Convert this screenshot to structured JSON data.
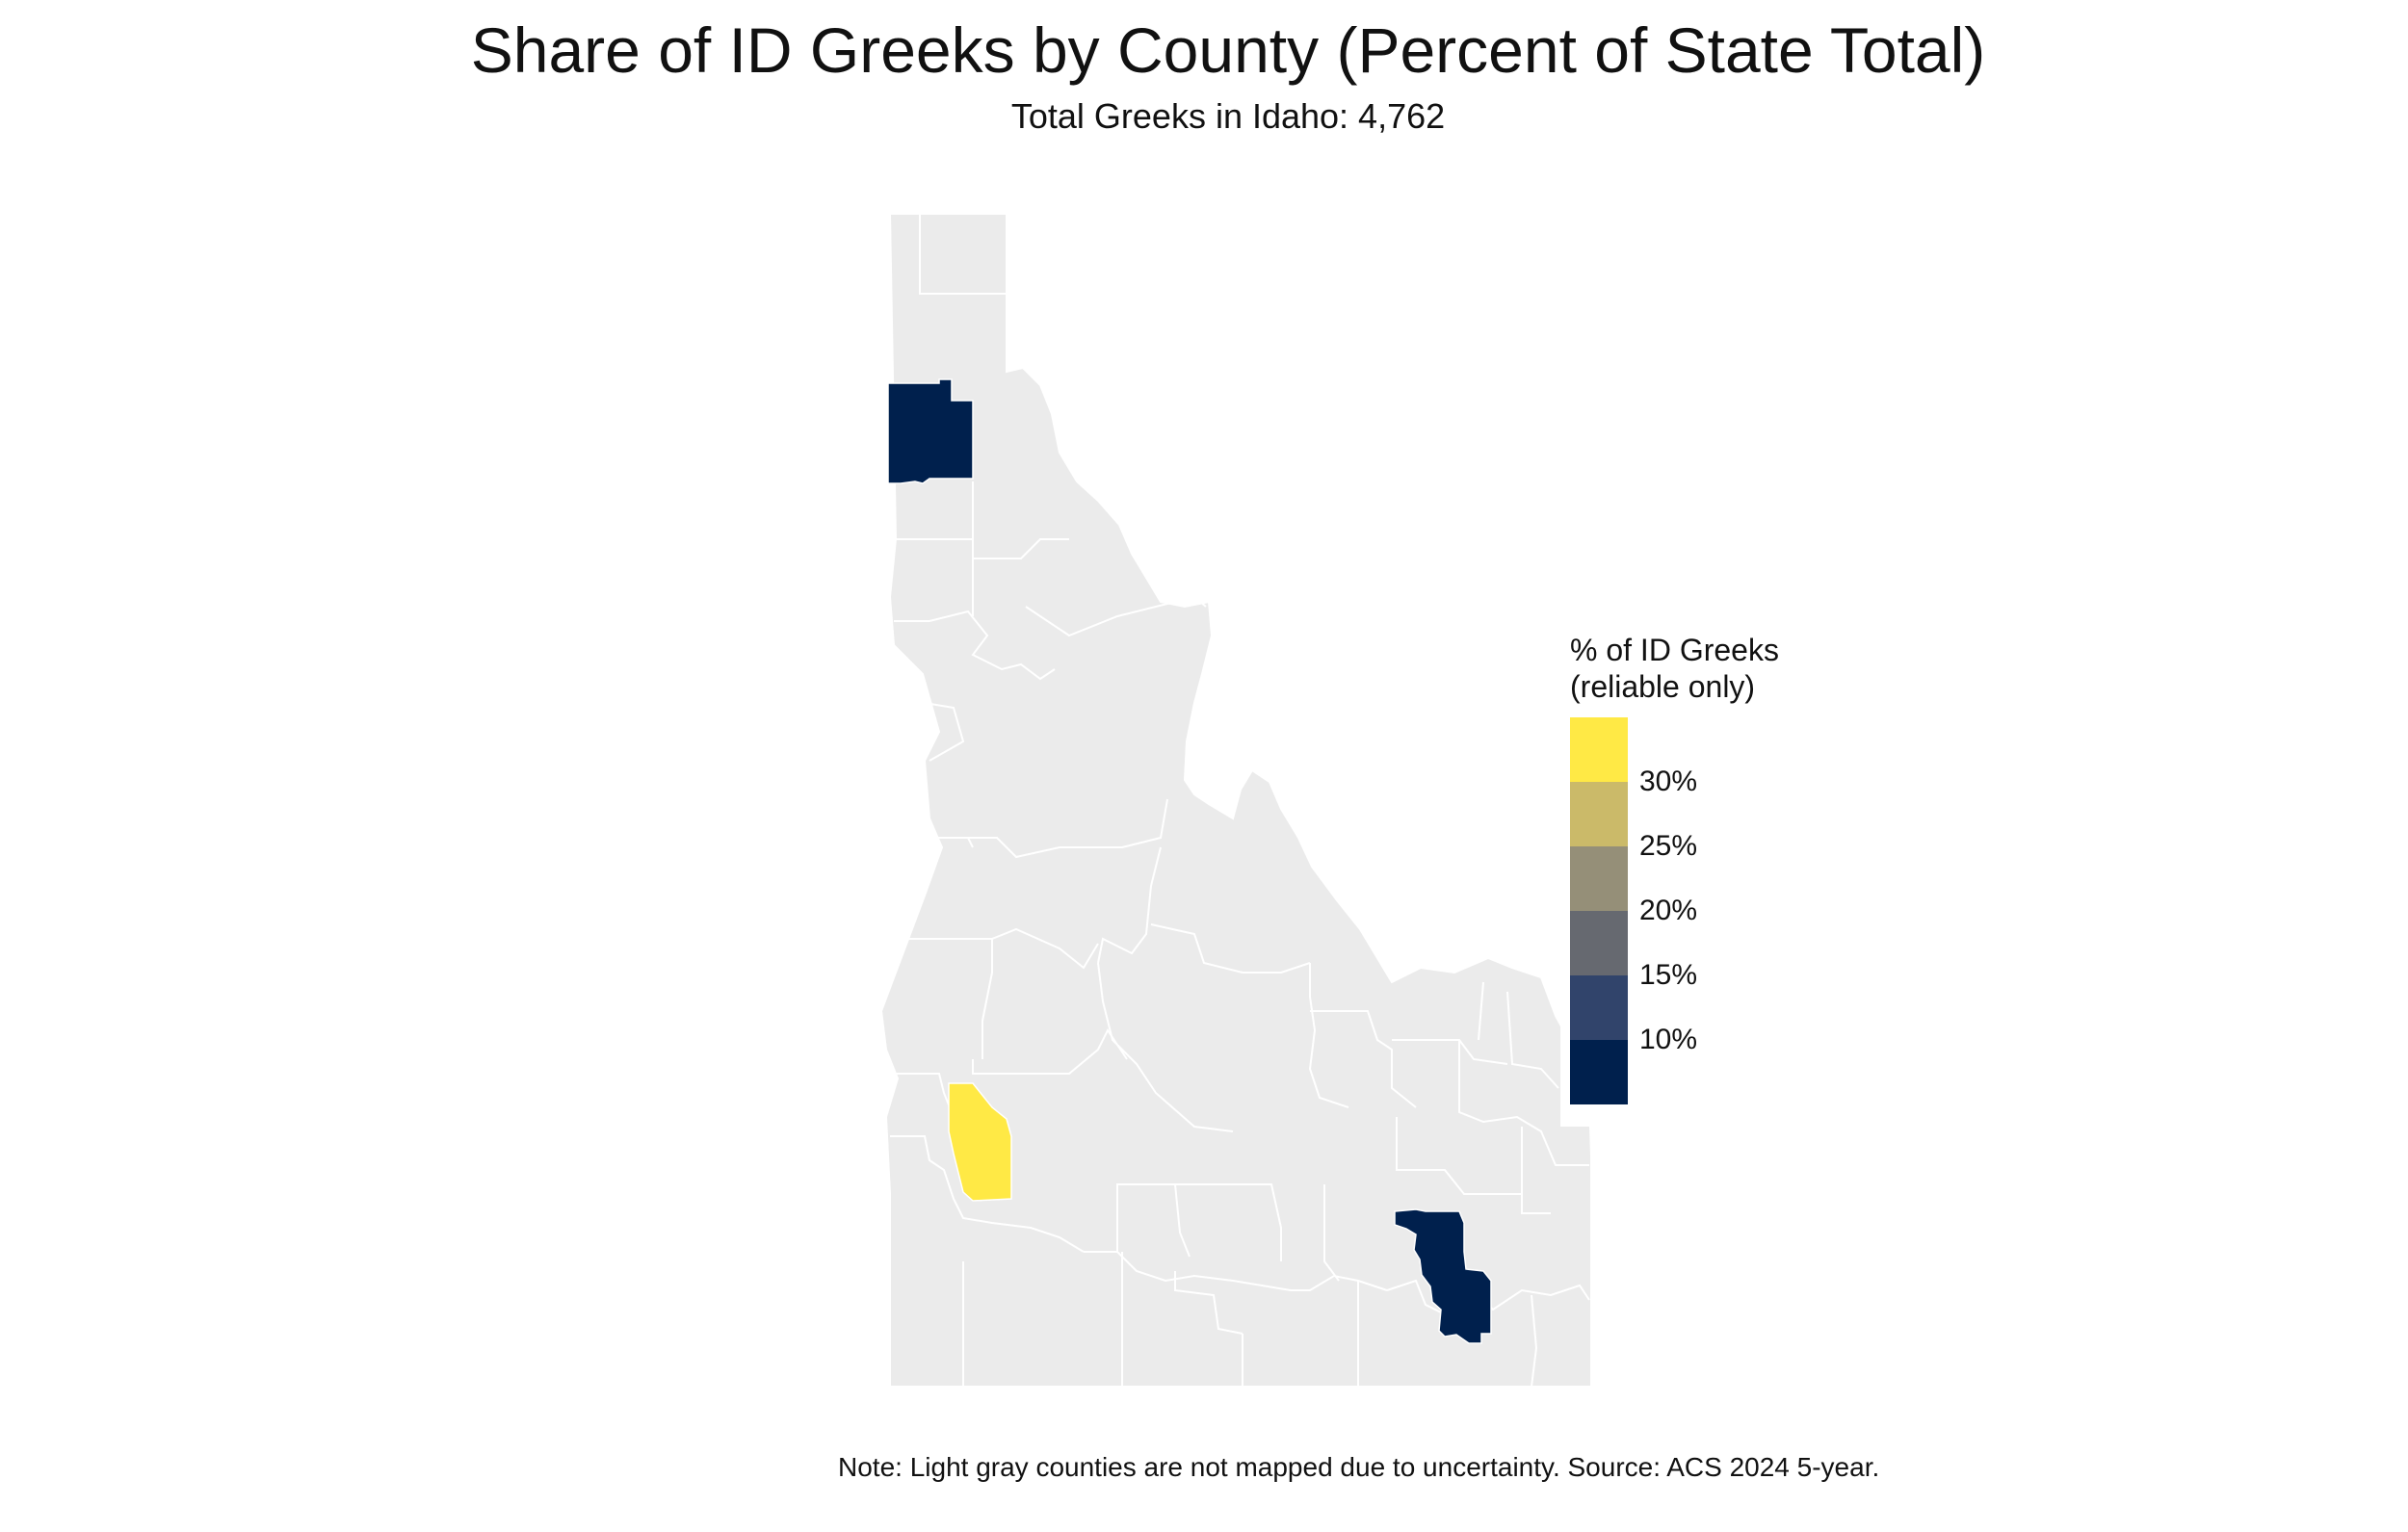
{
  "title": "Share of ID Greeks by County (Percent of State Total)",
  "subtitle": "Total Greeks in Idaho: 4,762",
  "caption": "Note: Light gray counties are not mapped due to uncertainty. Source: ACS 2024 5-year.",
  "colors": {
    "unmapped": "#ebebeb",
    "county_border": "#ffffff",
    "highlight_high": "#ffe945",
    "highlight_low": "#00204d"
  },
  "legend": {
    "title_line1": "% of ID Greeks",
    "title_line2": "(reliable only)",
    "scale_colors": [
      "#ffe945",
      "#cbba69",
      "#958f78",
      "#666970",
      "#31446b",
      "#00204d"
    ],
    "ticks": [
      "30%",
      "25%",
      "20%",
      "15%",
      "10%"
    ]
  },
  "highlighted_counties": [
    {
      "region": "northern panhandle county",
      "color": "#00204d",
      "share_band": "below 10%"
    },
    {
      "region": "southwestern county",
      "color": "#ffe945",
      "share_band": "above 30%"
    },
    {
      "region": "southeastern county",
      "color": "#00204d",
      "share_band": "below 10%"
    }
  ]
}
